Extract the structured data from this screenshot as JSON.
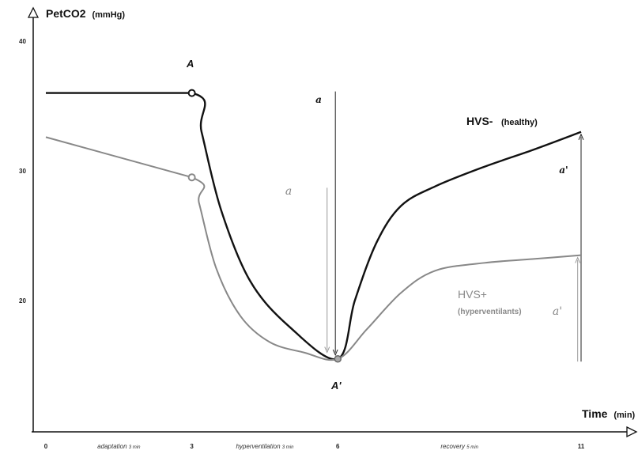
{
  "chart_data": {
    "type": "line",
    "title": "",
    "ylabel": "PetCO2",
    "ylabel_unit": "(mmHg)",
    "xlabel": "Time",
    "xlabel_unit": "(min)",
    "ylim": [
      10,
      40
    ],
    "xlim": [
      0,
      11.5
    ],
    "y_ticks": [
      {
        "value": 20,
        "label": "20"
      },
      {
        "value": 30,
        "label": "30"
      },
      {
        "value": 40,
        "label": "40"
      }
    ],
    "x_ticks": [
      {
        "value": 0,
        "label": "0"
      },
      {
        "value": 3,
        "label": "3"
      },
      {
        "value": 6,
        "label": "6"
      },
      {
        "value": 11,
        "label": "11"
      }
    ],
    "grid": false,
    "phases": [
      {
        "name": "adaptation",
        "duration": "3 min",
        "center": 1.5
      },
      {
        "name": "hyperventilation",
        "duration": "3 min",
        "center": 4.5
      },
      {
        "name": "recovery",
        "duration": "5 min",
        "center": 8.5
      }
    ],
    "series": [
      {
        "name": "HVS-",
        "subtitle": "(healthy)",
        "color": "#111111",
        "x": [
          0,
          3,
          3.2,
          3.6,
          4.2,
          5.0,
          6.0,
          6.35,
          6.8,
          7.3,
          8.0,
          9.0,
          10.0,
          11.0
        ],
        "y": [
          36,
          36,
          33,
          27,
          21.5,
          18,
          15.5,
          20,
          24.5,
          27.3,
          28.8,
          30.3,
          31.6,
          33
        ]
      },
      {
        "name": "HVS+",
        "subtitle": "(hyperventilants)",
        "color": "#888888",
        "x": [
          0,
          3,
          3.15,
          3.5,
          4.0,
          4.6,
          5.3,
          6.0,
          6.6,
          7.3,
          8.0,
          9.0,
          10.0,
          11.0
        ],
        "y": [
          32.6,
          29.5,
          27.5,
          22.5,
          18.8,
          16.8,
          16.0,
          15.5,
          17.8,
          20.6,
          22.3,
          22.9,
          23.2,
          23.5
        ]
      }
    ],
    "annotations": [
      {
        "label": "A",
        "x": 3,
        "y": 36,
        "series": "HVS-"
      },
      {
        "label": "A'",
        "x": 6,
        "y": 15.5
      },
      {
        "label": "a",
        "series": "HVS-",
        "from_y": 36,
        "to_y": 15.5,
        "x": 5.95
      },
      {
        "label": "a",
        "series": "HVS+",
        "from_y": 28.7,
        "to_y": 15.7,
        "x": 5.78
      },
      {
        "label": "a'",
        "series": "HVS-",
        "from_y": 15.3,
        "to_y": 33,
        "x": 11
      },
      {
        "label": "a'",
        "series": "HVS+",
        "from_y": 15.3,
        "to_y": 23.5,
        "x": 10.93
      }
    ]
  }
}
